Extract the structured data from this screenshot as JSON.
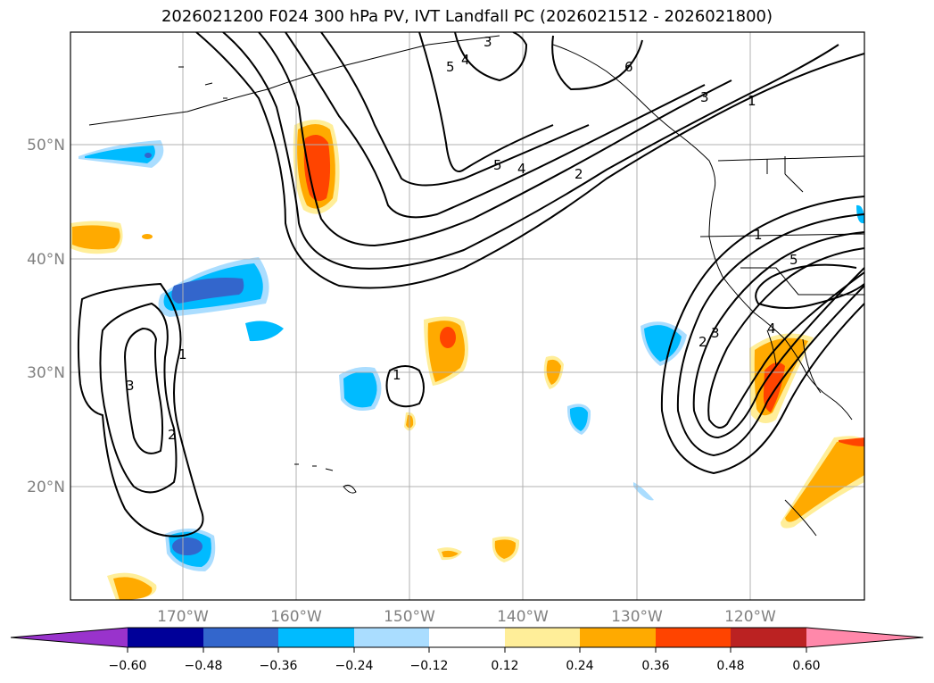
{
  "title": "2026021200 F024 300 hPa PV, IVT Landfall PC (2026021512 - 2026021800)",
  "map": {
    "lat_labels": [
      "50°N",
      "40°N",
      "30°N",
      "20°N"
    ],
    "lon_labels": [
      "170°W",
      "160°W",
      "150°W",
      "140°W",
      "130°W",
      "120°W"
    ],
    "contour_labels": [
      "3",
      "5",
      "4",
      "6",
      "3",
      "1",
      "5",
      "4",
      "2",
      "1",
      "5",
      "2",
      "3",
      "4",
      "1",
      "3",
      "2",
      "1"
    ]
  },
  "colorbar": {
    "colors": [
      "#9933cc",
      "#000099",
      "#3366cc",
      "#00bbff",
      "#aaddff",
      "#ffffff",
      "#ffee99",
      "#ffaa00",
      "#ff4400",
      "#bb2222",
      "#ff88aa"
    ],
    "tick_labels": [
      "−0.60",
      "−0.48",
      "−0.36",
      "−0.24",
      "−0.12",
      "0.12",
      "0.24",
      "0.36",
      "0.48",
      "0.60"
    ]
  }
}
